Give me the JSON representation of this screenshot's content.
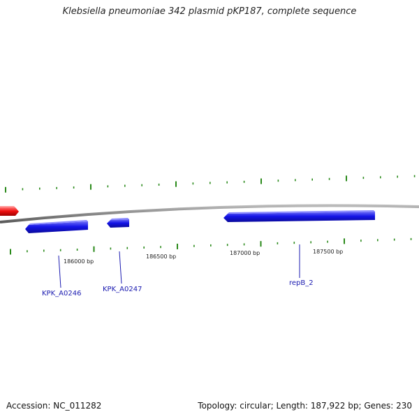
{
  "title": "Klebsiella pneumoniae 342 plasmid pKP187, complete sequence",
  "footer": {
    "accession": "Accession: NC_011282",
    "summary": "Topology: circular; Length: 187,922 bp; Genes: 230"
  },
  "map": {
    "position_labels": [
      "186000 bp",
      "186500 bp",
      "187000 bp",
      "187500 bp"
    ],
    "genes": [
      {
        "name": "KPK_A0246",
        "strand": "reverse",
        "color": "#1414e6"
      },
      {
        "name": "KPK_A0247",
        "strand": "reverse",
        "color": "#1414e6"
      },
      {
        "name": "repB_2",
        "strand": "reverse",
        "color": "#1414e6"
      },
      {
        "name": "",
        "strand": "forward",
        "color": "#ee1010"
      }
    ],
    "backbone_color": "#888888",
    "tick_color": "#2a8a1a",
    "label_color": "#1a1ab0"
  }
}
